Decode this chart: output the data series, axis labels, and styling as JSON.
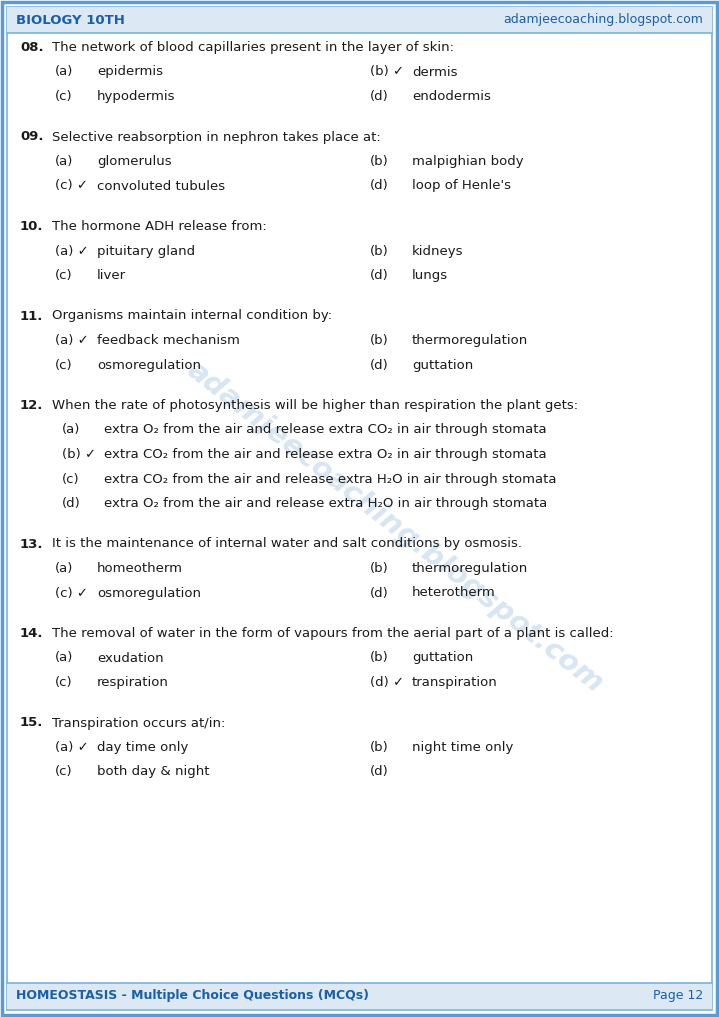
{
  "header_left": "BIOLOGY 10TH",
  "header_right": "adamjeecoaching.blogspot.com",
  "footer_left": "HOMEOSTASIS - Multiple Choice Questions (MCQs)",
  "footer_right": "Page 12",
  "bg_color": "#ffffff",
  "border_color_outer": "#5b9bd5",
  "border_color_inner": "#7ab3dc",
  "header_bg": "#dce9f5",
  "text_color": "#1a1a1a",
  "header_text_color": "#1a5fa8",
  "watermark": "adamjeecoaching.blogspot.com",
  "questions": [
    {
      "num": "08.",
      "text": "The network of blood capillaries present in the layer of skin:",
      "options": [
        {
          "label": "(a)",
          "text": "epidermis",
          "correct": false
        },
        {
          "label": "(b)",
          "text": "dermis",
          "correct": true
        },
        {
          "label": "(c)",
          "text": "hypodermis",
          "correct": false
        },
        {
          "label": "(d)",
          "text": "endodermis",
          "correct": false
        }
      ],
      "layout": "2col"
    },
    {
      "num": "09.",
      "text": "Selective reabsorption in nephron takes place at:",
      "options": [
        {
          "label": "(a)",
          "text": "glomerulus",
          "correct": false
        },
        {
          "label": "(b)",
          "text": "malpighian body",
          "correct": false
        },
        {
          "label": "(c)",
          "text": "convoluted tubules",
          "correct": true
        },
        {
          "label": "(d)",
          "text": "loop of Henle's",
          "correct": false
        }
      ],
      "layout": "2col"
    },
    {
      "num": "10.",
      "text": "The hormone ADH release from:",
      "options": [
        {
          "label": "(a)",
          "text": "pituitary gland",
          "correct": true
        },
        {
          "label": "(b)",
          "text": "kidneys",
          "correct": false
        },
        {
          "label": "(c)",
          "text": "liver",
          "correct": false
        },
        {
          "label": "(d)",
          "text": "lungs",
          "correct": false
        }
      ],
      "layout": "2col"
    },
    {
      "num": "11.",
      "text": "Organisms maintain internal condition by:",
      "options": [
        {
          "label": "(a)",
          "text": "feedback mechanism",
          "correct": true
        },
        {
          "label": "(b)",
          "text": "thermoregulation",
          "correct": false
        },
        {
          "label": "(c)",
          "text": "osmoregulation",
          "correct": false
        },
        {
          "label": "(d)",
          "text": "guttation",
          "correct": false
        }
      ],
      "layout": "2col"
    },
    {
      "num": "12.",
      "text": "When the rate of photosynthesis will be higher than respiration the plant gets:",
      "options": [
        {
          "label": "(a)",
          "text": "extra O₂ from the air and release extra CO₂ in air through stomata",
          "correct": false
        },
        {
          "label": "(b)",
          "text": "extra CO₂ from the air and release extra O₂ in air through stomata",
          "correct": true
        },
        {
          "label": "(c)",
          "text": "extra CO₂ from the air and release extra H₂O in air through stomata",
          "correct": false
        },
        {
          "label": "(d)",
          "text": "extra O₂ from the air and release extra H₂O in air through stomata",
          "correct": false
        }
      ],
      "layout": "1col"
    },
    {
      "num": "13.",
      "text": "It is the maintenance of internal water and salt conditions by osmosis.",
      "options": [
        {
          "label": "(a)",
          "text": "homeotherm",
          "correct": false
        },
        {
          "label": "(b)",
          "text": "thermoregulation",
          "correct": false
        },
        {
          "label": "(c)",
          "text": "osmoregulation",
          "correct": true
        },
        {
          "label": "(d)",
          "text": "heterotherm",
          "correct": false
        }
      ],
      "layout": "2col"
    },
    {
      "num": "14.",
      "text": "The removal of water in the form of vapours from the aerial part of a plant is called:",
      "options": [
        {
          "label": "(a)",
          "text": "exudation",
          "correct": false
        },
        {
          "label": "(b)",
          "text": "guttation",
          "correct": false
        },
        {
          "label": "(c)",
          "text": "respiration",
          "correct": false
        },
        {
          "label": "(d)",
          "text": "transpiration",
          "correct": true
        }
      ],
      "layout": "2col"
    },
    {
      "num": "15.",
      "text": "Transpiration occurs at/in:",
      "options": [
        {
          "label": "(a)",
          "text": "day time only",
          "correct": true
        },
        {
          "label": "(b)",
          "text": "night time only",
          "correct": false
        },
        {
          "label": "(c)",
          "text": "both day & night",
          "correct": false
        },
        {
          "label": "(d)",
          "text": "",
          "correct": false
        }
      ],
      "layout": "2col"
    }
  ]
}
